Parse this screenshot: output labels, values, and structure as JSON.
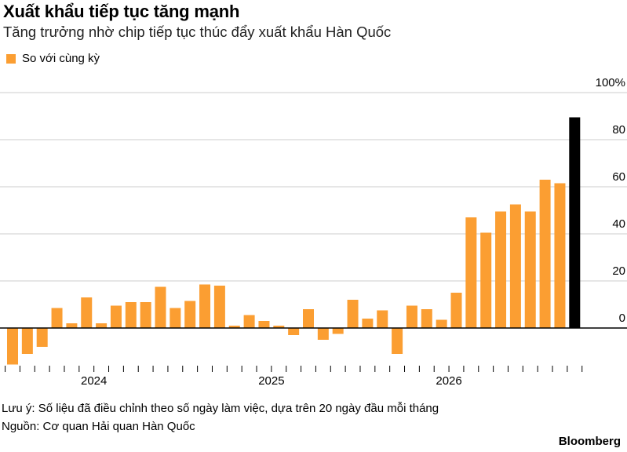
{
  "title": "Xuất khẩu tiếp tục tăng mạnh",
  "subtitle": "Tăng trưởng nhờ chip tiếp tục thúc đẩy xuất khẩu Hàn Quốc",
  "legend": {
    "label": "So với cùng kỳ",
    "color": "#fb9e32"
  },
  "note": "Lưu ý: Số liệu đã điều chỉnh theo số ngày làm việc, dựa trên 20 ngày đầu mỗi tháng",
  "source": "Nguồn: Cơ quan Hải quan Hàn Quốc",
  "brand": "Bloomberg",
  "chart_data": {
    "type": "bar",
    "y_unit": "%",
    "ylim": [
      -15,
      100
    ],
    "yticks": [
      {
        "value": 100,
        "label": "100%"
      },
      {
        "value": 80,
        "label": "80"
      },
      {
        "value": 60,
        "label": "60"
      },
      {
        "value": 40,
        "label": "40"
      },
      {
        "value": 20,
        "label": "20"
      },
      {
        "value": 0,
        "label": "0"
      }
    ],
    "year_labels": [
      {
        "label": "2024",
        "after_bar_index": 5
      },
      {
        "label": "2025",
        "after_bar_index": 17
      },
      {
        "label": "2026",
        "after_bar_index": 29
      }
    ],
    "grid": true,
    "colors": {
      "bar": "#fb9e32",
      "highlight": "#000000",
      "grid": "#cccccc",
      "zero": "#000000"
    },
    "values": [
      -15.5,
      -11,
      -8,
      8.5,
      2,
      13,
      2,
      9.5,
      11,
      11,
      17.5,
      8.5,
      11.5,
      18.5,
      18,
      1,
      5.5,
      3,
      1,
      -3,
      8,
      -5,
      -2.5,
      12,
      4,
      7.5,
      -11,
      9.5,
      8,
      3.5,
      15,
      47,
      40.5,
      49.5,
      52.5,
      49.5,
      63,
      61.5,
      89.5
    ],
    "highlight_index": 38
  }
}
